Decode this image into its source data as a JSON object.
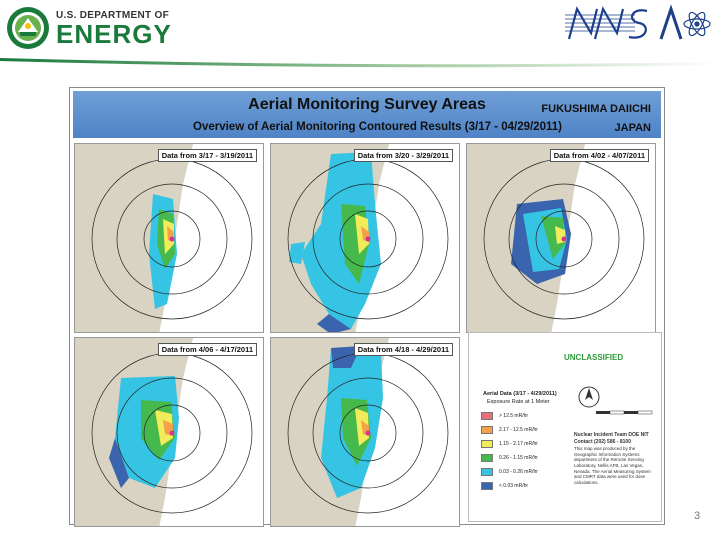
{
  "header": {
    "agency_line1": "U.S. DEPARTMENT OF",
    "agency_line2": "ENERGY",
    "partner_logo": "NNSA"
  },
  "slide": {
    "title": "Aerial Monitoring Survey Areas",
    "subtitle": "Overview of Aerial Monitoring Contoured Results (3/17 - 04/29/2011)",
    "location_line1": "FUKUSHIMA DAIICHI",
    "location_line2": "JAPAN",
    "maps": [
      {
        "label": "Data from 3/17 - 3/19/2011"
      },
      {
        "label": "Data from 3/20 - 3/29/2011"
      },
      {
        "label": "Data from 4/02 - 4/07/2011"
      },
      {
        "label": "Data from 4/06 - 4/17/2011"
      },
      {
        "label": "Data from 4/18 - 4/29/2011"
      }
    ],
    "legend": {
      "classification": "UNCLASSIFIED",
      "title": "Aerial Data (3/17 - 4/29/2011)",
      "subtitle": "Exposure Rate at 1 Meter",
      "items": [
        {
          "label": "> 12.5 mR/hr",
          "color": "#e8707a"
        },
        {
          "label": "2.17 - 12.5 mR/hr",
          "color": "#f4a24a"
        },
        {
          "label": "1.15 - 2.17 mR/hr",
          "color": "#f2ec5a"
        },
        {
          "label": "0.26 - 1.15 mR/hr",
          "color": "#45b94b"
        },
        {
          "label": "0.03 - 0.26 mR/hr",
          "color": "#36c4e4"
        },
        {
          "label": "< 0.03 mR/hr",
          "color": "#3a64ad"
        }
      ],
      "notes_title": "Nuclear Incident Team DOE NIT",
      "notes_line": "Contact (202) 586 - 8100",
      "notes_body": "This map was produced by the Geographic Information Systems department of the Remote Sensing Laboratory, Nellis AFB, Las Vegas, Nevada. The Aerial Measuring System and CMRT data were used for dose calculations."
    },
    "page_number": "3"
  },
  "colors": {
    "doe_green": "#1a7a3c",
    "banner_blue": "#5a8dcc",
    "land": "#d8d3c3",
    "sea": "#ffffff"
  }
}
